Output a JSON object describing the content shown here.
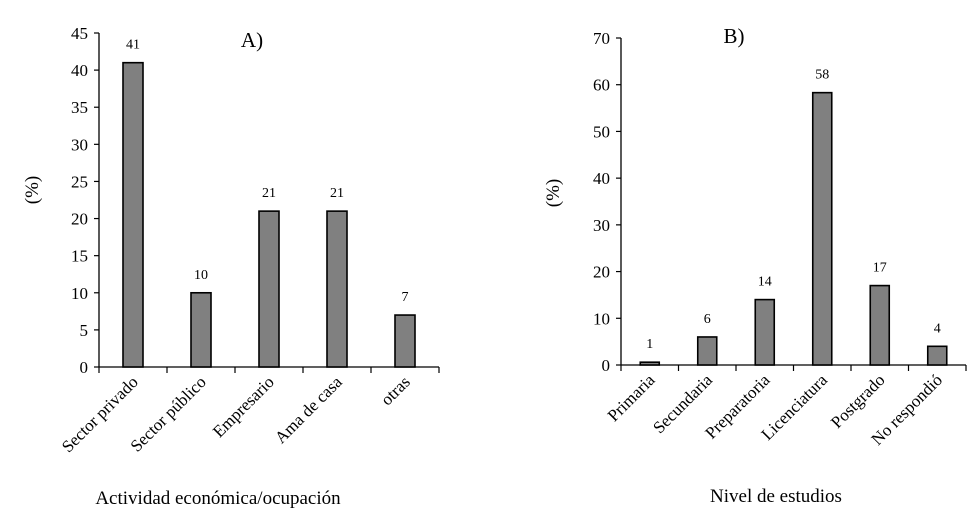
{
  "chart_data": [
    {
      "type": "bar",
      "title": "A)",
      "xlabel": "Actividad económica/ocupación",
      "ylabel": "(%)",
      "ylim": [
        0,
        45
      ],
      "yticks": [
        "0",
        "5",
        "10",
        "15",
        "20",
        "25",
        "30",
        "35",
        "40",
        "45"
      ],
      "categories": [
        "Sector privado",
        "Sector público",
        "Empresario",
        "Ama de casa",
        "otras"
      ],
      "values": [
        41,
        10,
        21,
        21,
        7
      ],
      "data_labels": [
        "41",
        "10",
        "21",
        "21",
        "7"
      ],
      "bar_color": "#808080",
      "grid": false,
      "legend": "none"
    },
    {
      "type": "bar",
      "title": "B)",
      "xlabel": "Nivel de estudios",
      "ylabel": "(%)",
      "ylim": [
        0,
        70
      ],
      "yticks": [
        "0",
        "10",
        "20",
        "30",
        "40",
        "50",
        "60",
        "70"
      ],
      "categories": [
        "Primaria",
        "Secundaria",
        "Preparatoria",
        "Licenciatura",
        "Postgrado",
        "No respondió"
      ],
      "values": [
        0.6,
        6,
        14,
        58.3,
        17,
        4
      ],
      "data_labels": [
        "1",
        "6",
        "14",
        "58",
        "17",
        "4"
      ],
      "bar_color": "#808080",
      "grid": false,
      "legend": "none"
    }
  ]
}
